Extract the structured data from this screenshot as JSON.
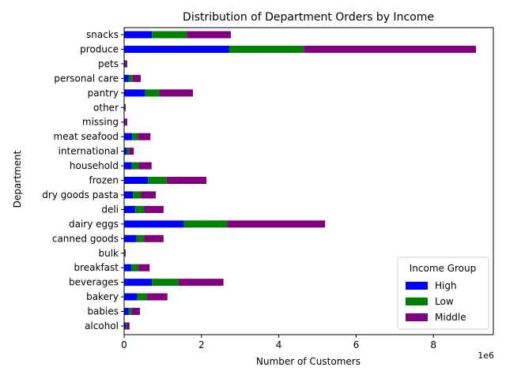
{
  "chart_data": {
    "type": "bar",
    "orientation": "horizontal",
    "stacked": true,
    "title": "Distribution of Department Orders by Income",
    "xlabel": "Number of Customers",
    "ylabel": "Department",
    "x_offset_text": "1e6",
    "x_scale_factor": 1000000,
    "xlim": [
      0,
      9.55
    ],
    "xticks": [
      0,
      2,
      4,
      6,
      8
    ],
    "xtick_labels": [
      "0",
      "2",
      "4",
      "6",
      "8"
    ],
    "grid": false,
    "legend": {
      "title": "Income Group",
      "placement": "lower-right"
    },
    "categories": [
      "alcohol",
      "babies",
      "bakery",
      "beverages",
      "breakfast",
      "bulk",
      "canned goods",
      "dairy eggs",
      "deli",
      "dry goods pasta",
      "frozen",
      "household",
      "international",
      "meat seafood",
      "missing",
      "other",
      "pantry",
      "personal care",
      "pets",
      "produce",
      "snacks"
    ],
    "series": [
      {
        "name": "High",
        "color": "#0000ff",
        "values": [
          0.04,
          0.12,
          0.34,
          0.72,
          0.19,
          0.01,
          0.32,
          1.55,
          0.29,
          0.23,
          0.62,
          0.2,
          0.07,
          0.21,
          0.02,
          0.01,
          0.54,
          0.12,
          0.02,
          2.72,
          0.72
        ]
      },
      {
        "name": "Low",
        "color": "#008000",
        "values": [
          0.03,
          0.07,
          0.25,
          0.69,
          0.18,
          0.01,
          0.2,
          1.12,
          0.23,
          0.2,
          0.48,
          0.18,
          0.06,
          0.15,
          0.01,
          0.01,
          0.38,
          0.1,
          0.01,
          1.93,
          0.9
        ]
      },
      {
        "name": "Middle",
        "color": "#800080",
        "values": [
          0.07,
          0.22,
          0.53,
          1.16,
          0.29,
          0.02,
          0.5,
          2.53,
          0.5,
          0.39,
          1.03,
          0.33,
          0.12,
          0.32,
          0.05,
          0.02,
          0.86,
          0.21,
          0.05,
          4.45,
          1.14
        ]
      }
    ]
  }
}
